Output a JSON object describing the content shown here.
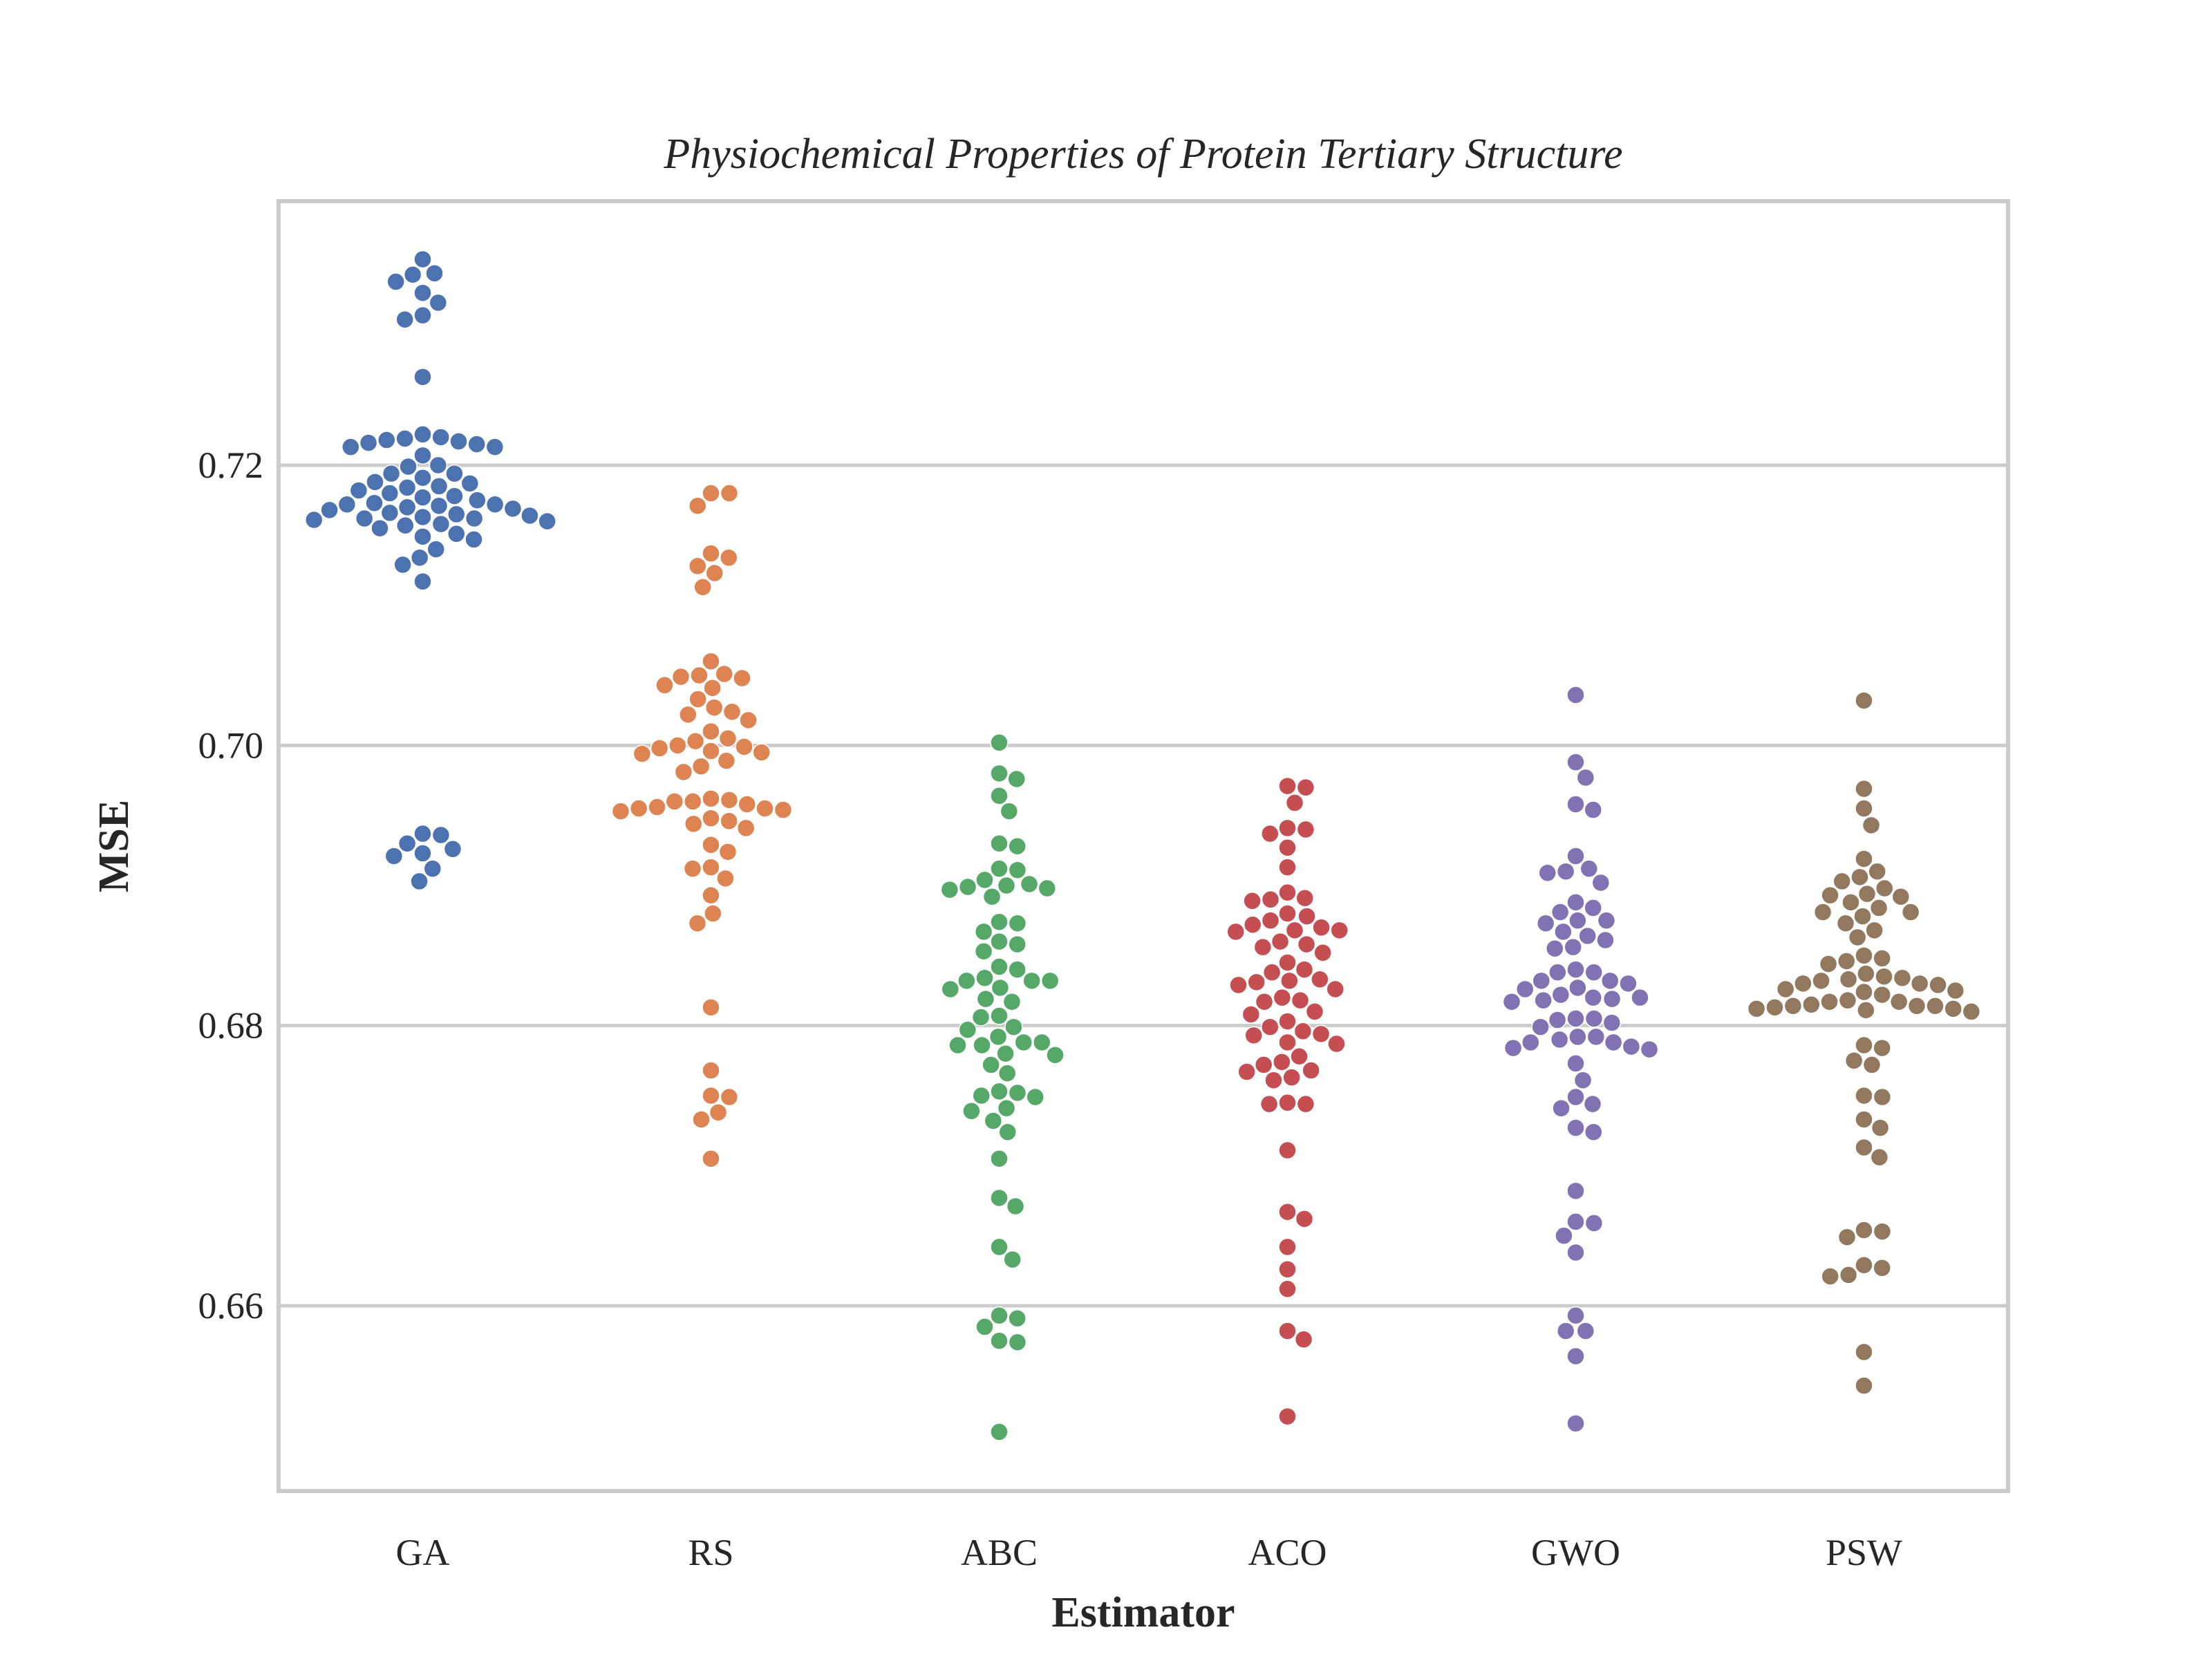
{
  "chart_data": {
    "type": "scatter",
    "subtype": "swarm",
    "title": "Physiochemical Properties of Protein Tertiary Structure",
    "xlabel": "Estimator",
    "ylabel": "MSE",
    "categories": [
      "GA",
      "RS",
      "ABC",
      "ACO",
      "GWO",
      "PSW"
    ],
    "ylim": [
      0.647,
      0.739
    ],
    "yticks": [
      0.66,
      0.68,
      0.7,
      0.72
    ],
    "ytick_labels": [
      "0.66",
      "0.68",
      "0.70",
      "0.72"
    ],
    "grid": true,
    "legend": "none",
    "colors": [
      "#4c72b0",
      "#dd8452",
      "#55a868",
      "#c44e52",
      "#8172b3",
      "#937860"
    ],
    "series": [
      {
        "category": "GA",
        "values": [
          0.7347,
          0.7337,
          0.7336,
          0.7331,
          0.7323,
          0.7316,
          0.7307,
          0.7304,
          0.7263,
          0.7222,
          0.722,
          0.7219,
          0.7218,
          0.7217,
          0.7216,
          0.7215,
          0.7213,
          0.7213,
          0.7207,
          0.72,
          0.7199,
          0.7194,
          0.7194,
          0.7191,
          0.7188,
          0.7187,
          0.7185,
          0.7184,
          0.7182,
          0.718,
          0.7178,
          0.7177,
          0.7175,
          0.7173,
          0.7172,
          0.7172,
          0.7171,
          0.717,
          0.7169,
          0.7168,
          0.7166,
          0.7165,
          0.7164,
          0.7163,
          0.7162,
          0.7162,
          0.7161,
          0.716,
          0.7158,
          0.7157,
          0.7155,
          0.7151,
          0.7149,
          0.7147,
          0.714,
          0.7134,
          0.7129,
          0.7117,
          0.6937,
          0.6936,
          0.693,
          0.6926,
          0.6923,
          0.6921,
          0.6912,
          0.6903
        ]
      },
      {
        "category": "RS",
        "values": [
          0.718,
          0.718,
          0.7171,
          0.7137,
          0.7134,
          0.7128,
          0.7123,
          0.7113,
          0.706,
          0.7051,
          0.705,
          0.7049,
          0.7048,
          0.7043,
          0.7041,
          0.7033,
          0.7027,
          0.7024,
          0.7022,
          0.7018,
          0.701,
          0.7005,
          0.7003,
          0.7,
          0.6999,
          0.6998,
          0.6996,
          0.6995,
          0.6994,
          0.6989,
          0.6985,
          0.6981,
          0.6962,
          0.6961,
          0.696,
          0.696,
          0.6958,
          0.6956,
          0.6955,
          0.6955,
          0.6954,
          0.6953,
          0.6948,
          0.6946,
          0.6944,
          0.6941,
          0.6929,
          0.6924,
          0.6913,
          0.6912,
          0.6905,
          0.6893,
          0.688,
          0.6873,
          0.6813,
          0.6768,
          0.675,
          0.6749,
          0.6738,
          0.6733,
          0.6705
        ]
      },
      {
        "category": "ABC",
        "values": [
          0.7002,
          0.698,
          0.6976,
          0.6964,
          0.6953,
          0.693,
          0.6928,
          0.6912,
          0.6911,
          0.6904,
          0.6901,
          0.69,
          0.6899,
          0.6898,
          0.6897,
          0.6892,
          0.6874,
          0.6873,
          0.6867,
          0.686,
          0.6858,
          0.6853,
          0.6842,
          0.684,
          0.6834,
          0.6832,
          0.6832,
          0.6832,
          0.6827,
          0.6826,
          0.6819,
          0.6817,
          0.6807,
          0.6806,
          0.6799,
          0.6797,
          0.6792,
          0.6788,
          0.6788,
          0.6786,
          0.6786,
          0.678,
          0.6779,
          0.6772,
          0.6766,
          0.6753,
          0.6752,
          0.675,
          0.6749,
          0.6741,
          0.6739,
          0.6732,
          0.6724,
          0.6705,
          0.6677,
          0.6671,
          0.6642,
          0.6633,
          0.6593,
          0.6591,
          0.6585,
          0.6575,
          0.6574,
          0.651
        ]
      },
      {
        "category": "ACO",
        "values": [
          0.6971,
          0.697,
          0.6959,
          0.6941,
          0.694,
          0.6937,
          0.6927,
          0.6913,
          0.6895,
          0.6891,
          0.689,
          0.6889,
          0.688,
          0.6878,
          0.6875,
          0.6872,
          0.687,
          0.6868,
          0.6868,
          0.6867,
          0.686,
          0.6858,
          0.6856,
          0.6852,
          0.6845,
          0.684,
          0.6838,
          0.6833,
          0.6832,
          0.6831,
          0.6829,
          0.6826,
          0.682,
          0.6818,
          0.6817,
          0.681,
          0.6808,
          0.6803,
          0.6799,
          0.6796,
          0.6794,
          0.6793,
          0.6788,
          0.6787,
          0.6778,
          0.6774,
          0.6772,
          0.6768,
          0.6767,
          0.6763,
          0.6761,
          0.6745,
          0.6744,
          0.6744,
          0.6711,
          0.6667,
          0.6662,
          0.6642,
          0.6626,
          0.6612,
          0.6582,
          0.6576,
          0.6521
        ]
      },
      {
        "category": "GWO",
        "values": [
          0.7036,
          0.6988,
          0.6977,
          0.6958,
          0.6954,
          0.6921,
          0.6912,
          0.691,
          0.6909,
          0.6902,
          0.6888,
          0.6884,
          0.6881,
          0.6875,
          0.6875,
          0.6873,
          0.6867,
          0.6864,
          0.6861,
          0.6856,
          0.6855,
          0.684,
          0.6838,
          0.6838,
          0.6832,
          0.6832,
          0.683,
          0.6827,
          0.6826,
          0.6822,
          0.682,
          0.682,
          0.6819,
          0.6818,
          0.6817,
          0.6805,
          0.6805,
          0.6804,
          0.6802,
          0.6799,
          0.6792,
          0.6792,
          0.679,
          0.6788,
          0.6788,
          0.6785,
          0.6784,
          0.6783,
          0.6773,
          0.6761,
          0.6749,
          0.6744,
          0.6741,
          0.6727,
          0.6724,
          0.6682,
          0.666,
          0.6659,
          0.665,
          0.6638,
          0.6593,
          0.6582,
          0.6582,
          0.6564,
          0.6516
        ]
      },
      {
        "category": "PSW",
        "values": [
          0.7032,
          0.6969,
          0.6955,
          0.6943,
          0.6919,
          0.691,
          0.6906,
          0.6903,
          0.6898,
          0.6894,
          0.6893,
          0.6892,
          0.6888,
          0.6884,
          0.6881,
          0.6881,
          0.6878,
          0.6873,
          0.6868,
          0.6863,
          0.685,
          0.6848,
          0.6846,
          0.6844,
          0.6837,
          0.6835,
          0.6834,
          0.6833,
          0.6832,
          0.683,
          0.683,
          0.6829,
          0.6826,
          0.6825,
          0.6824,
          0.6822,
          0.6818,
          0.6817,
          0.6817,
          0.6815,
          0.6814,
          0.6814,
          0.6814,
          0.6813,
          0.6812,
          0.6812,
          0.6811,
          0.681,
          0.6786,
          0.6784,
          0.6775,
          0.6772,
          0.675,
          0.6749,
          0.6733,
          0.6727,
          0.6713,
          0.6706,
          0.6654,
          0.6653,
          0.6649,
          0.6629,
          0.6627,
          0.6622,
          0.6621,
          0.6567,
          0.6543
        ]
      }
    ]
  }
}
